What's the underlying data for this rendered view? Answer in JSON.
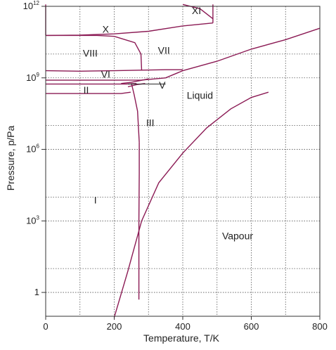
{
  "chart_data": {
    "type": "line",
    "title": "",
    "xlabel": "Temperature, T/K",
    "ylabel": "Pressure, p/Pa",
    "x_axis": {
      "min": 0,
      "max": 800,
      "grid_step": 100,
      "ticks": [
        0,
        200,
        400,
        600,
        800
      ],
      "tick_labels": [
        "0",
        "200",
        "400",
        "600",
        "800"
      ]
    },
    "y_axis": {
      "scale": "log",
      "min": 0.1,
      "max": 1000000000000.0,
      "grid_levels": [
        1,
        1000,
        1000000,
        1000000000,
        1000000000000,
        10,
        10000,
        10000000,
        10000000000
      ],
      "ticks": [
        1,
        1000,
        1000000,
        1000000000,
        1000000000000
      ],
      "tick_labels": [
        {
          "base": "1",
          "exp": ""
        },
        {
          "base": "10",
          "exp": "3"
        },
        {
          "base": "10",
          "exp": "6"
        },
        {
          "base": "10",
          "exp": "9"
        },
        {
          "base": "10",
          "exp": "12"
        }
      ]
    },
    "grid": true,
    "line_color": "#8b1a54",
    "series": [
      {
        "points": [
          [
            200,
            0.09
          ],
          [
            240,
            8
          ],
          [
            280,
            1000
          ],
          [
            330,
            40000
          ],
          [
            400,
            700000
          ],
          [
            470,
            8000000
          ],
          [
            540,
            50000000
          ],
          [
            600,
            150000000
          ],
          [
            650,
            250000000
          ]
        ]
      },
      {
        "points": [
          [
            273,
            2000000
          ],
          [
            273,
            100000
          ],
          [
            272,
            1000
          ],
          [
            272,
            0.5
          ]
        ]
      },
      {
        "points": [
          [
            273,
            2000000
          ],
          [
            268,
            40000000
          ],
          [
            258,
            200000000
          ],
          [
            250,
            600000000
          ]
        ]
      },
      {
        "points": [
          [
            0,
            220000000
          ],
          [
            220,
            220000000
          ],
          [
            248,
            250000000
          ]
        ]
      },
      {
        "points": [
          [
            0,
            550000000
          ],
          [
            235,
            550000000
          ],
          [
            265,
            580000000
          ]
        ]
      },
      {
        "points": [
          [
            0,
            800000000
          ],
          [
            200,
            800000000
          ],
          [
            280,
            810000000
          ],
          [
            350,
            1000000000
          ],
          [
            400,
            2000000000
          ],
          [
            500,
            5000000000
          ],
          [
            600,
            16000000000
          ],
          [
            700,
            40000000000
          ],
          [
            800,
            120000000000
          ]
        ]
      },
      {
        "points": [
          [
            220,
            580000000
          ],
          [
            250,
            650000000
          ],
          [
            300,
            900000000
          ]
        ]
      },
      {
        "points": [
          [
            240,
            420000000
          ],
          [
            265,
            520000000
          ],
          [
            290,
            580000000
          ]
        ]
      },
      {
        "points": [
          [
            0,
            2000000000
          ],
          [
            100,
            1900000000
          ],
          [
            200,
            2000000000
          ],
          [
            280,
            2100000000
          ],
          [
            350,
            2200000000
          ],
          [
            400,
            2200000000
          ]
        ]
      },
      {
        "points": [
          [
            0,
            60000000000
          ],
          [
            150,
            60000000000
          ],
          [
            200,
            55000000000
          ],
          [
            260,
            30000000000
          ],
          [
            278,
            10000000000
          ],
          [
            280,
            2100000000
          ]
        ]
      },
      {
        "points": [
          [
            0,
            62000000000
          ],
          [
            0,
            1200000000000
          ]
        ]
      },
      {
        "points": [
          [
            0,
            60000000000
          ],
          [
            100,
            62000000000
          ],
          [
            200,
            70000000000
          ],
          [
            300,
            90000000000
          ],
          [
            400,
            150000000000
          ],
          [
            488,
            200000000000
          ]
        ]
      },
      {
        "points": [
          [
            400,
            1200000000000
          ],
          [
            450,
            800000000000
          ],
          [
            488,
            300000000000
          ]
        ]
      },
      {
        "points": [
          [
            488,
            200000000000
          ],
          [
            488,
            1200000000000
          ]
        ]
      }
    ],
    "annotations": [
      {
        "text": "X",
        "x": 175,
        "y": 100000000000
      },
      {
        "text": "XI",
        "x": 440,
        "y": 600000000000
      },
      {
        "text": "VIII",
        "x": 130,
        "y": 10000000000
      },
      {
        "text": "VII",
        "x": 345,
        "y": 13000000000
      },
      {
        "text": "VI",
        "x": 175,
        "y": 1300000000
      },
      {
        "text": "II",
        "x": 118,
        "y": 280000000
      },
      {
        "text": "V",
        "x": 340,
        "y": 450000000
      },
      {
        "text": "Liquid",
        "x": 450,
        "y": 170000000
      },
      {
        "text": "III",
        "x": 305,
        "y": 12000000
      },
      {
        "text": "I",
        "x": 145,
        "y": 7000
      },
      {
        "text": "Vapour",
        "x": 560,
        "y": 220
      }
    ],
    "pointer_line": {
      "x": [
        240,
        350
      ],
      "y": 550000000
    }
  }
}
